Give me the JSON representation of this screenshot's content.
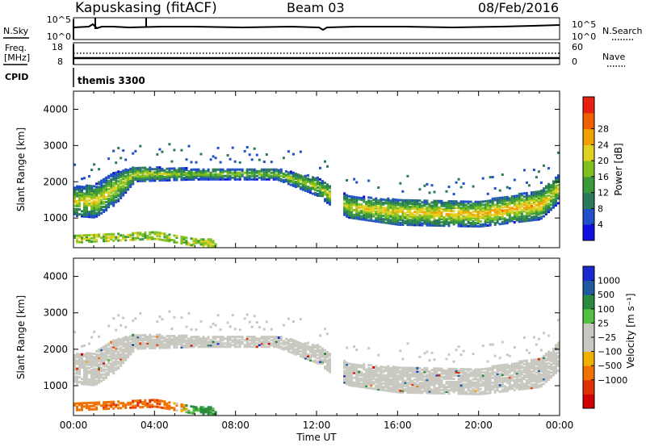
{
  "header": {
    "station": "Kapuskasing (fitACF)",
    "beam": "Beam 03",
    "date": "08/Feb/2016"
  },
  "top_panels": {
    "nsky_label": "N.Sky",
    "nsky_ticks": [
      "10^5",
      "10^0"
    ],
    "nsearch_label": "N.Search",
    "nsearch_ticks": [
      "10^5",
      "10^0"
    ],
    "freq_label_1": "Freq.",
    "freq_label_2": "[MHz]",
    "freq_ticks": [
      "18",
      "8"
    ],
    "nave_label": "Nave",
    "nave_ticks": [
      "60",
      "0"
    ],
    "cpid_label": "CPID",
    "cpid_value": "themis 3300"
  },
  "axes": {
    "x_label": "Time UT",
    "x_ticks": [
      "00:00",
      "04:00",
      "08:00",
      "12:00",
      "16:00",
      "20:00",
      "00:00"
    ],
    "y_label": "Slant Range [km]",
    "y_ticks": [
      "1000",
      "2000",
      "3000",
      "4000"
    ]
  },
  "colorbars": {
    "power": {
      "label": "Power [dB]",
      "ticks": [
        "4",
        "8",
        "12",
        "16",
        "20",
        "24",
        "28"
      ],
      "colors": [
        "#1010e0",
        "#2050c8",
        "#2a7a5a",
        "#3a9a3a",
        "#80c020",
        "#e0d020",
        "#f0a000",
        "#f06000",
        "#e82010"
      ]
    },
    "velocity": {
      "label": "Velocity [m s⁻¹]",
      "ticks": [
        "1000",
        "500",
        "100",
        "25",
        "−25",
        "−100",
        "−500",
        "−1000"
      ],
      "colors": [
        "#1a2ad0",
        "#1f5aa0",
        "#2a8a40",
        "#52c040",
        "#c8c8c0",
        "#c8c8c0",
        "#f0b000",
        "#f07000",
        "#e03000",
        "#d00000"
      ]
    }
  },
  "chart_data": [
    {
      "type": "heatmap",
      "title": "Power",
      "colorbar_label": "Power [dB]",
      "x_range_hours": [
        0,
        24
      ],
      "y_range_km": [
        180,
        4500
      ],
      "ylabel": "Slant Range [km]",
      "xlabel": "Time UT",
      "main_band": [
        {
          "t": 0.0,
          "center_km": 1500,
          "width_km": 400,
          "power_db": 22
        },
        {
          "t": 1.0,
          "center_km": 1500,
          "width_km": 450,
          "power_db": 24
        },
        {
          "t": 2.0,
          "center_km": 1850,
          "width_km": 450,
          "power_db": 20
        },
        {
          "t": 3.0,
          "center_km": 2250,
          "width_km": 200,
          "power_db": 22
        },
        {
          "t": 6.0,
          "center_km": 2250,
          "width_km": 150,
          "power_db": 18
        },
        {
          "t": 10.0,
          "center_km": 2250,
          "width_km": 150,
          "power_db": 18
        },
        {
          "t": 12.0,
          "center_km": 1900,
          "width_km": 250,
          "power_db": 20
        },
        {
          "t": 13.5,
          "center_km": 1350,
          "width_km": 300,
          "power_db": 22
        },
        {
          "t": 16.0,
          "center_km": 1200,
          "width_km": 350,
          "power_db": 24
        },
        {
          "t": 20.0,
          "center_km": 1150,
          "width_km": 350,
          "power_db": 26
        },
        {
          "t": 23.0,
          "center_km": 1400,
          "width_km": 400,
          "power_db": 26
        },
        {
          "t": 24.0,
          "center_km": 1900,
          "width_km": 400,
          "power_db": 20
        }
      ]
    },
    {
      "type": "heatmap",
      "title": "Velocity",
      "colorbar_label": "Velocity [m s⁻¹]",
      "x_range_hours": [
        0,
        24
      ],
      "y_range_km": [
        180,
        4500
      ],
      "ylabel": "Slant Range [km]",
      "xlabel": "Time UT",
      "main_band_velocity_ms": 0,
      "near_range_band": [
        {
          "t": 0.0,
          "center_km": 450,
          "velocity_ms": -200
        },
        {
          "t": 4.0,
          "center_km": 550,
          "velocity_ms": -300
        },
        {
          "t": 6.0,
          "center_km": 350,
          "velocity_ms": 120
        }
      ]
    }
  ]
}
